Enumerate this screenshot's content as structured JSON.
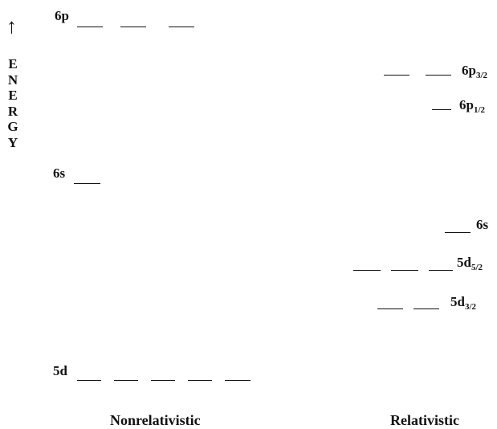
{
  "axis": {
    "arrow": "↑",
    "energy_letters": [
      "E",
      "N",
      "E",
      "R",
      "G",
      "Y"
    ]
  },
  "nonrelativistic": {
    "title": "Nonrelativistic",
    "level_6p": "6p",
    "level_6s": "6s",
    "level_5d": "5d"
  },
  "relativistic": {
    "title": "Relativistic",
    "p32": {
      "main": "6p",
      "sub": "3/2"
    },
    "p12": {
      "main": "6p",
      "sub": "1/2"
    },
    "s": "6s",
    "d52": {
      "main": "5d",
      "sub": "5/2"
    },
    "d32": {
      "main": "5d",
      "sub": "3/2"
    }
  }
}
